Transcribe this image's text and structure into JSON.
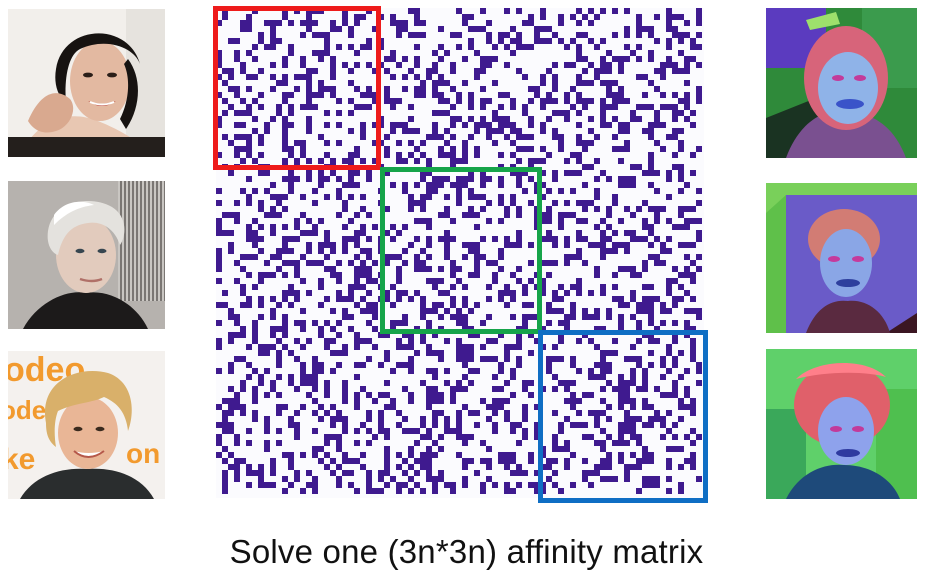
{
  "caption": "Solve one (3n*3n) affinity matrix",
  "matrix": {
    "cell_color": "#3f1a8f",
    "background_color": "#ffffff",
    "density": 0.36
  },
  "block_boxes": [
    {
      "name": "block-1",
      "color": "#ee1b1b"
    },
    {
      "name": "block-2",
      "color": "#16a44a"
    },
    {
      "name": "block-3",
      "color": "#0f6ec4"
    }
  ],
  "faces": [
    {
      "name": "face-photo-1",
      "description_icon": "person-photo"
    },
    {
      "name": "face-photo-2",
      "description_icon": "person-photo"
    },
    {
      "name": "face-photo-3",
      "description_icon": "person-photo"
    }
  ],
  "feature_maps": [
    {
      "name": "feature-map-1",
      "description_icon": "colored-feature-map"
    },
    {
      "name": "feature-map-2",
      "description_icon": "colored-feature-map"
    },
    {
      "name": "feature-map-3",
      "description_icon": "colored-feature-map"
    }
  ]
}
